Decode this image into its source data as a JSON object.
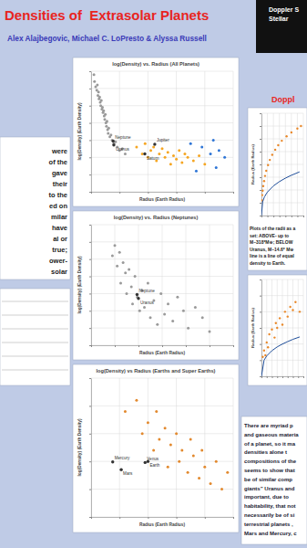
{
  "title": "Densities of  Extrasolar Planets",
  "authors": "Alex Alajbegovic, Michael C. LoPresto & Alyssa Russell",
  "logo_text": [
    "Doppler S",
    "Stellar"
  ],
  "right_heading": "Doppl",
  "left_text": [
    "were",
    "of the",
    "gave",
    "their",
    "to the",
    "ed on",
    "milar",
    "have",
    "al or",
    "true;",
    "ower-",
    "solar"
  ],
  "caption": [
    "Plots of the radii as a",
    "set: ABOVE- up to",
    "M~318*M⊕; BELOW",
    "Uranus, M~14.6* M⊕",
    "line is a line of equal",
    "density to Earth."
  ],
  "body_text": [
    "There are myriad p",
    "and gaseous materia",
    "of a planet, so it ma",
    "densities alone t",
    "compositions of the",
    "seems to show that",
    "be of similar comp",
    "giants” Uranus and",
    "important, due to",
    "habitability, that not",
    "necessarily be of si",
    "terrestrial planets ,",
    "Mars and Mercury, c"
  ],
  "chart_data": [
    {
      "type": "scatter",
      "title": "log(Density) vs. Radius (All Planets)",
      "x_label": "Radius (Earth Radius)",
      "y_label": "log(Density) (Earth Density)",
      "xlim": [
        0,
        25
      ],
      "xticks": [
        0,
        5,
        10,
        15,
        20,
        25
      ],
      "ylim": [
        -2,
        1.5
      ],
      "yticks": [
        -2,
        -1.5,
        -1,
        -0.5,
        0,
        0.5,
        1,
        1.5
      ],
      "grid": true,
      "tick_labels": false,
      "series": [
        {
          "color": "#9a9a9a",
          "marker": "circle",
          "x": [
            0.5,
            0.6,
            0.8,
            1.0,
            1.1,
            1.2,
            1.3,
            1.4,
            1.5,
            1.6,
            1.7,
            1.8,
            1.9,
            2.0,
            2.1,
            2.2,
            2.3,
            2.4,
            2.5,
            2.6,
            2.7,
            2.8,
            2.9,
            3.0,
            3.1,
            3.3,
            3.5,
            3.7,
            4.0,
            4.3,
            4.6,
            5.0,
            5.5,
            6.0
          ],
          "values": [
            1.4,
            1.2,
            1.05,
            0.95,
            1.1,
            0.8,
            0.9,
            0.7,
            0.75,
            0.6,
            0.5,
            0.65,
            0.4,
            0.45,
            0.3,
            0.35,
            0.2,
            0.1,
            0.25,
            0.0,
            -0.1,
            0.05,
            -0.2,
            -0.3,
            -0.15,
            -0.4,
            -0.35,
            -0.5,
            -0.6,
            -0.55,
            -0.7,
            -0.8,
            -0.75,
            -0.9
          ]
        },
        {
          "color": "#f5a623",
          "marker": "circle",
          "x": [
            8,
            9,
            9.5,
            10,
            10.5,
            11,
            11.5,
            12,
            12.5,
            13,
            13.5,
            14,
            14.5,
            15,
            15.5,
            16,
            16.5,
            17,
            18,
            19,
            20
          ],
          "values": [
            -0.7,
            -0.9,
            -0.6,
            -1.0,
            -0.8,
            -0.7,
            -1.1,
            -0.9,
            -0.75,
            -1.0,
            -0.85,
            -1.2,
            -0.95,
            -1.05,
            -0.8,
            -1.15,
            -0.9,
            -1.0,
            -1.1,
            -0.95,
            -1.2
          ]
        },
        {
          "color": "#2e75d6",
          "marker": "circle",
          "x": [
            17.5,
            18.5,
            19.5,
            21,
            21.5,
            22,
            22.5,
            23.5
          ],
          "values": [
            -0.6,
            -1.4,
            -0.7,
            -0.9,
            -0.5,
            -1.3,
            -0.8,
            -1.0
          ]
        }
      ],
      "annotations": [
        {
          "text": "Jupiter",
          "x": 11.2,
          "y": -0.62
        },
        {
          "text": "Saturn",
          "x": 9.45,
          "y": -0.9
        },
        {
          "text": "Neptune",
          "x": 3.88,
          "y": -0.53
        },
        {
          "text": "Uranus",
          "x": 4.0,
          "y": -0.64
        }
      ]
    },
    {
      "type": "scatter",
      "title": "log(Density) vs. Radius (Neptunes)",
      "x_label": "Radius (Earth Radius)",
      "y_label": "log(Density) (Earth Density)",
      "xlim": [
        0,
        12
      ],
      "xticks": [
        0,
        2,
        4,
        6,
        8,
        10,
        12
      ],
      "ylim": [
        -2,
        1.5
      ],
      "yticks": [
        -2,
        -1.5,
        -1,
        -0.5,
        0,
        0.5,
        1,
        1.5
      ],
      "grid": true,
      "tick_labels": false,
      "series": [
        {
          "color": "#9a9a9a",
          "marker": "circle",
          "x": [
            1.8,
            2.0,
            2.2,
            2.4,
            2.5,
            2.7,
            2.9,
            3.0,
            3.2,
            3.4,
            3.5,
            3.7,
            3.9,
            4.1,
            4.3,
            4.5,
            4.8,
            5.0,
            5.3,
            5.6,
            5.9,
            6.2,
            6.5,
            6.9,
            7.3,
            7.8,
            8.2,
            8.8,
            9.4,
            10.0
          ],
          "values": [
            0.6,
            0.9,
            0.3,
            0.7,
            -0.2,
            0.4,
            0.1,
            -0.5,
            0.2,
            -0.3,
            -0.8,
            0.0,
            -0.6,
            -1.0,
            -0.4,
            -0.9,
            -0.2,
            -1.2,
            -0.7,
            -1.4,
            -0.5,
            -1.1,
            -0.8,
            -1.3,
            -0.6,
            -1.0,
            -1.5,
            -0.9,
            -1.2,
            -1.6
          ]
        }
      ],
      "annotations": [
        {
          "text": "Neptune",
          "x": 3.88,
          "y": -0.53
        },
        {
          "text": "Uranus",
          "x": 4.0,
          "y": -0.64
        }
      ]
    },
    {
      "type": "scatter",
      "title": "log(Density) vs Radius (Earths and Super Earths)",
      "x_label": "Radius (Earth Radius)",
      "y_label": "log(Density) (Earth Density)",
      "xlim": [
        0,
        2.5
      ],
      "xticks": [
        0,
        0.5,
        1,
        1.5,
        2,
        2.5
      ],
      "ylim": [
        -1,
        1.5
      ],
      "yticks": [
        -1,
        -0.5,
        0,
        0.5,
        1,
        1.5
      ],
      "grid": true,
      "tick_labels": false,
      "series": [
        {
          "color": "#e2892e",
          "marker": "circle",
          "x": [
            0.6,
            0.8,
            0.9,
            1.0,
            1.1,
            1.15,
            1.2,
            1.3,
            1.35,
            1.4,
            1.5,
            1.55,
            1.6,
            1.7,
            1.75,
            1.8,
            1.9,
            1.95,
            2.0,
            2.1,
            2.2,
            2.3,
            2.4
          ],
          "values": [
            0.9,
            1.1,
            0.5,
            0.7,
            0.2,
            0.9,
            0.4,
            0.6,
            -0.1,
            0.3,
            0.5,
            0.0,
            0.2,
            -0.2,
            0.4,
            0.1,
            -0.3,
            0.2,
            -0.1,
            -0.4,
            0.0,
            -0.5,
            -0.2
          ]
        }
      ],
      "annotations": [
        {
          "text": "Mercury",
          "x": 0.38,
          "y": -0.01
        },
        {
          "text": "Mars",
          "x": 0.53,
          "y": -0.15
        },
        {
          "text": "Venus",
          "x": 0.95,
          "y": -0.02
        },
        {
          "text": "Earth",
          "x": 1.0,
          "y": 0.0
        }
      ]
    },
    {
      "type": "scatter",
      "y_label": "Radius (Earth Radius)",
      "xlim": [
        0,
        350
      ],
      "xticks": [
        0,
        50,
        100,
        150,
        200,
        250,
        300,
        350
      ],
      "ylim": [
        0,
        16
      ],
      "yticks": [
        0,
        2,
        4,
        6,
        8,
        10,
        12,
        14,
        16
      ],
      "grid": true,
      "tick_labels": false,
      "series": [
        {
          "color": "#e8882a",
          "marker": "circle",
          "x": [
            3,
            6,
            10,
            15,
            22,
            30,
            40,
            55,
            70,
            90,
            115,
            140,
            170,
            210,
            250,
            300,
            330
          ],
          "values": [
            2.4,
            3.2,
            3.9,
            4.6,
            5.4,
            6.2,
            7.0,
            7.9,
            8.7,
            9.5,
            10.3,
            11.0,
            11.7,
            12.4,
            13.0,
            13.6,
            14.0
          ]
        },
        {
          "type": "line",
          "color": "#1f4e9a",
          "line_style": "solid",
          "x": [
            0,
            10,
            25,
            50,
            100,
            150,
            200,
            250,
            318
          ],
          "values": [
            0,
            2.15,
            2.92,
            3.68,
            4.64,
            5.31,
            5.85,
            6.3,
            6.83
          ]
        }
      ]
    },
    {
      "type": "scatter",
      "y_label": "Radius (Earth Radius)",
      "xlim": [
        0,
        16
      ],
      "xticks": [
        0,
        2,
        4,
        6,
        8,
        10,
        12,
        14,
        16
      ],
      "ylim": [
        0,
        6
      ],
      "yticks": [
        0,
        1,
        2,
        3,
        4,
        5,
        6
      ],
      "grid": true,
      "tick_labels": false,
      "series": [
        {
          "color": "#e8882a",
          "marker": "circle",
          "x": [
            0.5,
            1,
            1.5,
            2,
            2.5,
            3,
            4,
            5,
            5.5,
            6,
            7,
            8,
            9,
            10,
            11,
            12,
            13,
            14.6
          ],
          "values": [
            1.2,
            1.6,
            1.3,
            2.1,
            1.8,
            2.6,
            2.9,
            2.4,
            3.3,
            3.0,
            3.6,
            3.2,
            4.0,
            3.7,
            4.3,
            4.1,
            4.6,
            4.0
          ]
        },
        {
          "type": "line",
          "color": "#1f4e9a",
          "line_style": "solid",
          "x": [
            0,
            1,
            2,
            4,
            6,
            8,
            10,
            12,
            14.6
          ],
          "values": [
            0,
            1,
            1.26,
            1.59,
            1.82,
            2,
            2.15,
            2.29,
            2.44
          ]
        }
      ]
    }
  ]
}
